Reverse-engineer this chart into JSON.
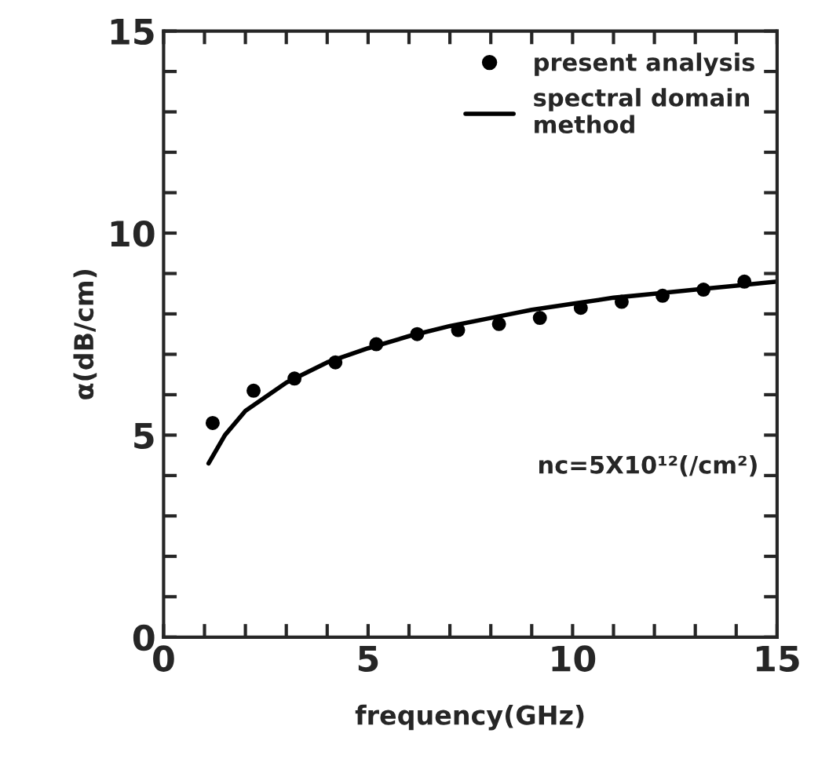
{
  "chart_data": {
    "type": "scatter",
    "xlabel": "frequency(GHz)",
    "ylabel": "α(dB/cm)",
    "xlim": [
      0,
      15
    ],
    "ylim": [
      0,
      15
    ],
    "xticks": [
      0,
      {
        "value": 1,
        "label": null
      },
      {
        "value": 2,
        "label": null
      },
      {
        "value": 3,
        "label": null
      },
      {
        "value": 4,
        "label": null
      },
      5,
      {
        "value": 6,
        "label": null
      },
      {
        "value": 7,
        "label": null
      },
      {
        "value": 8,
        "label": null
      },
      {
        "value": 9,
        "label": null
      },
      10,
      {
        "value": 11,
        "label": null
      },
      {
        "value": 12,
        "label": null
      },
      {
        "value": 13,
        "label": null
      },
      {
        "value": 14,
        "label": null
      },
      15
    ],
    "yticks": [
      0,
      {
        "value": 1,
        "label": null
      },
      {
        "value": 2,
        "label": null
      },
      {
        "value": 3,
        "label": null
      },
      {
        "value": 4,
        "label": null
      },
      5,
      {
        "value": 6,
        "label": null
      },
      {
        "value": 7,
        "label": null
      },
      {
        "value": 8,
        "label": null
      },
      {
        "value": 9,
        "label": null
      },
      10,
      {
        "value": 11,
        "label": null
      },
      {
        "value": 12,
        "label": null
      },
      {
        "value": 13,
        "label": null
      },
      {
        "value": 14,
        "label": null
      },
      15
    ],
    "series": [
      {
        "name": "present analysis",
        "marker": "circle",
        "color": "#000000",
        "x": [
          1.2,
          2.2,
          3.2,
          4.2,
          5.2,
          6.2,
          7.2,
          8.2,
          9.2,
          10.2,
          11.2,
          12.2,
          13.2,
          14.2
        ],
        "values": [
          5.3,
          6.1,
          6.4,
          6.8,
          7.25,
          7.5,
          7.6,
          7.75,
          7.9,
          8.15,
          8.3,
          8.45,
          8.6,
          8.8
        ]
      },
      {
        "name": "spectral domain\nmethod",
        "type": "line",
        "marker": "none",
        "line_style": "solid",
        "color": "#000000",
        "x": [
          1.1,
          1.5,
          2,
          3,
          4,
          5,
          6,
          7,
          8,
          9,
          10,
          11,
          12,
          13,
          14,
          15
        ],
        "values": [
          4.3,
          5.0,
          5.6,
          6.3,
          6.8,
          7.15,
          7.45,
          7.7,
          7.9,
          8.1,
          8.25,
          8.4,
          8.5,
          8.6,
          8.7,
          8.8
        ]
      }
    ],
    "annotations": [
      "nc=5X10¹²(/cm²)"
    ],
    "legend": "top right",
    "grid": false
  }
}
